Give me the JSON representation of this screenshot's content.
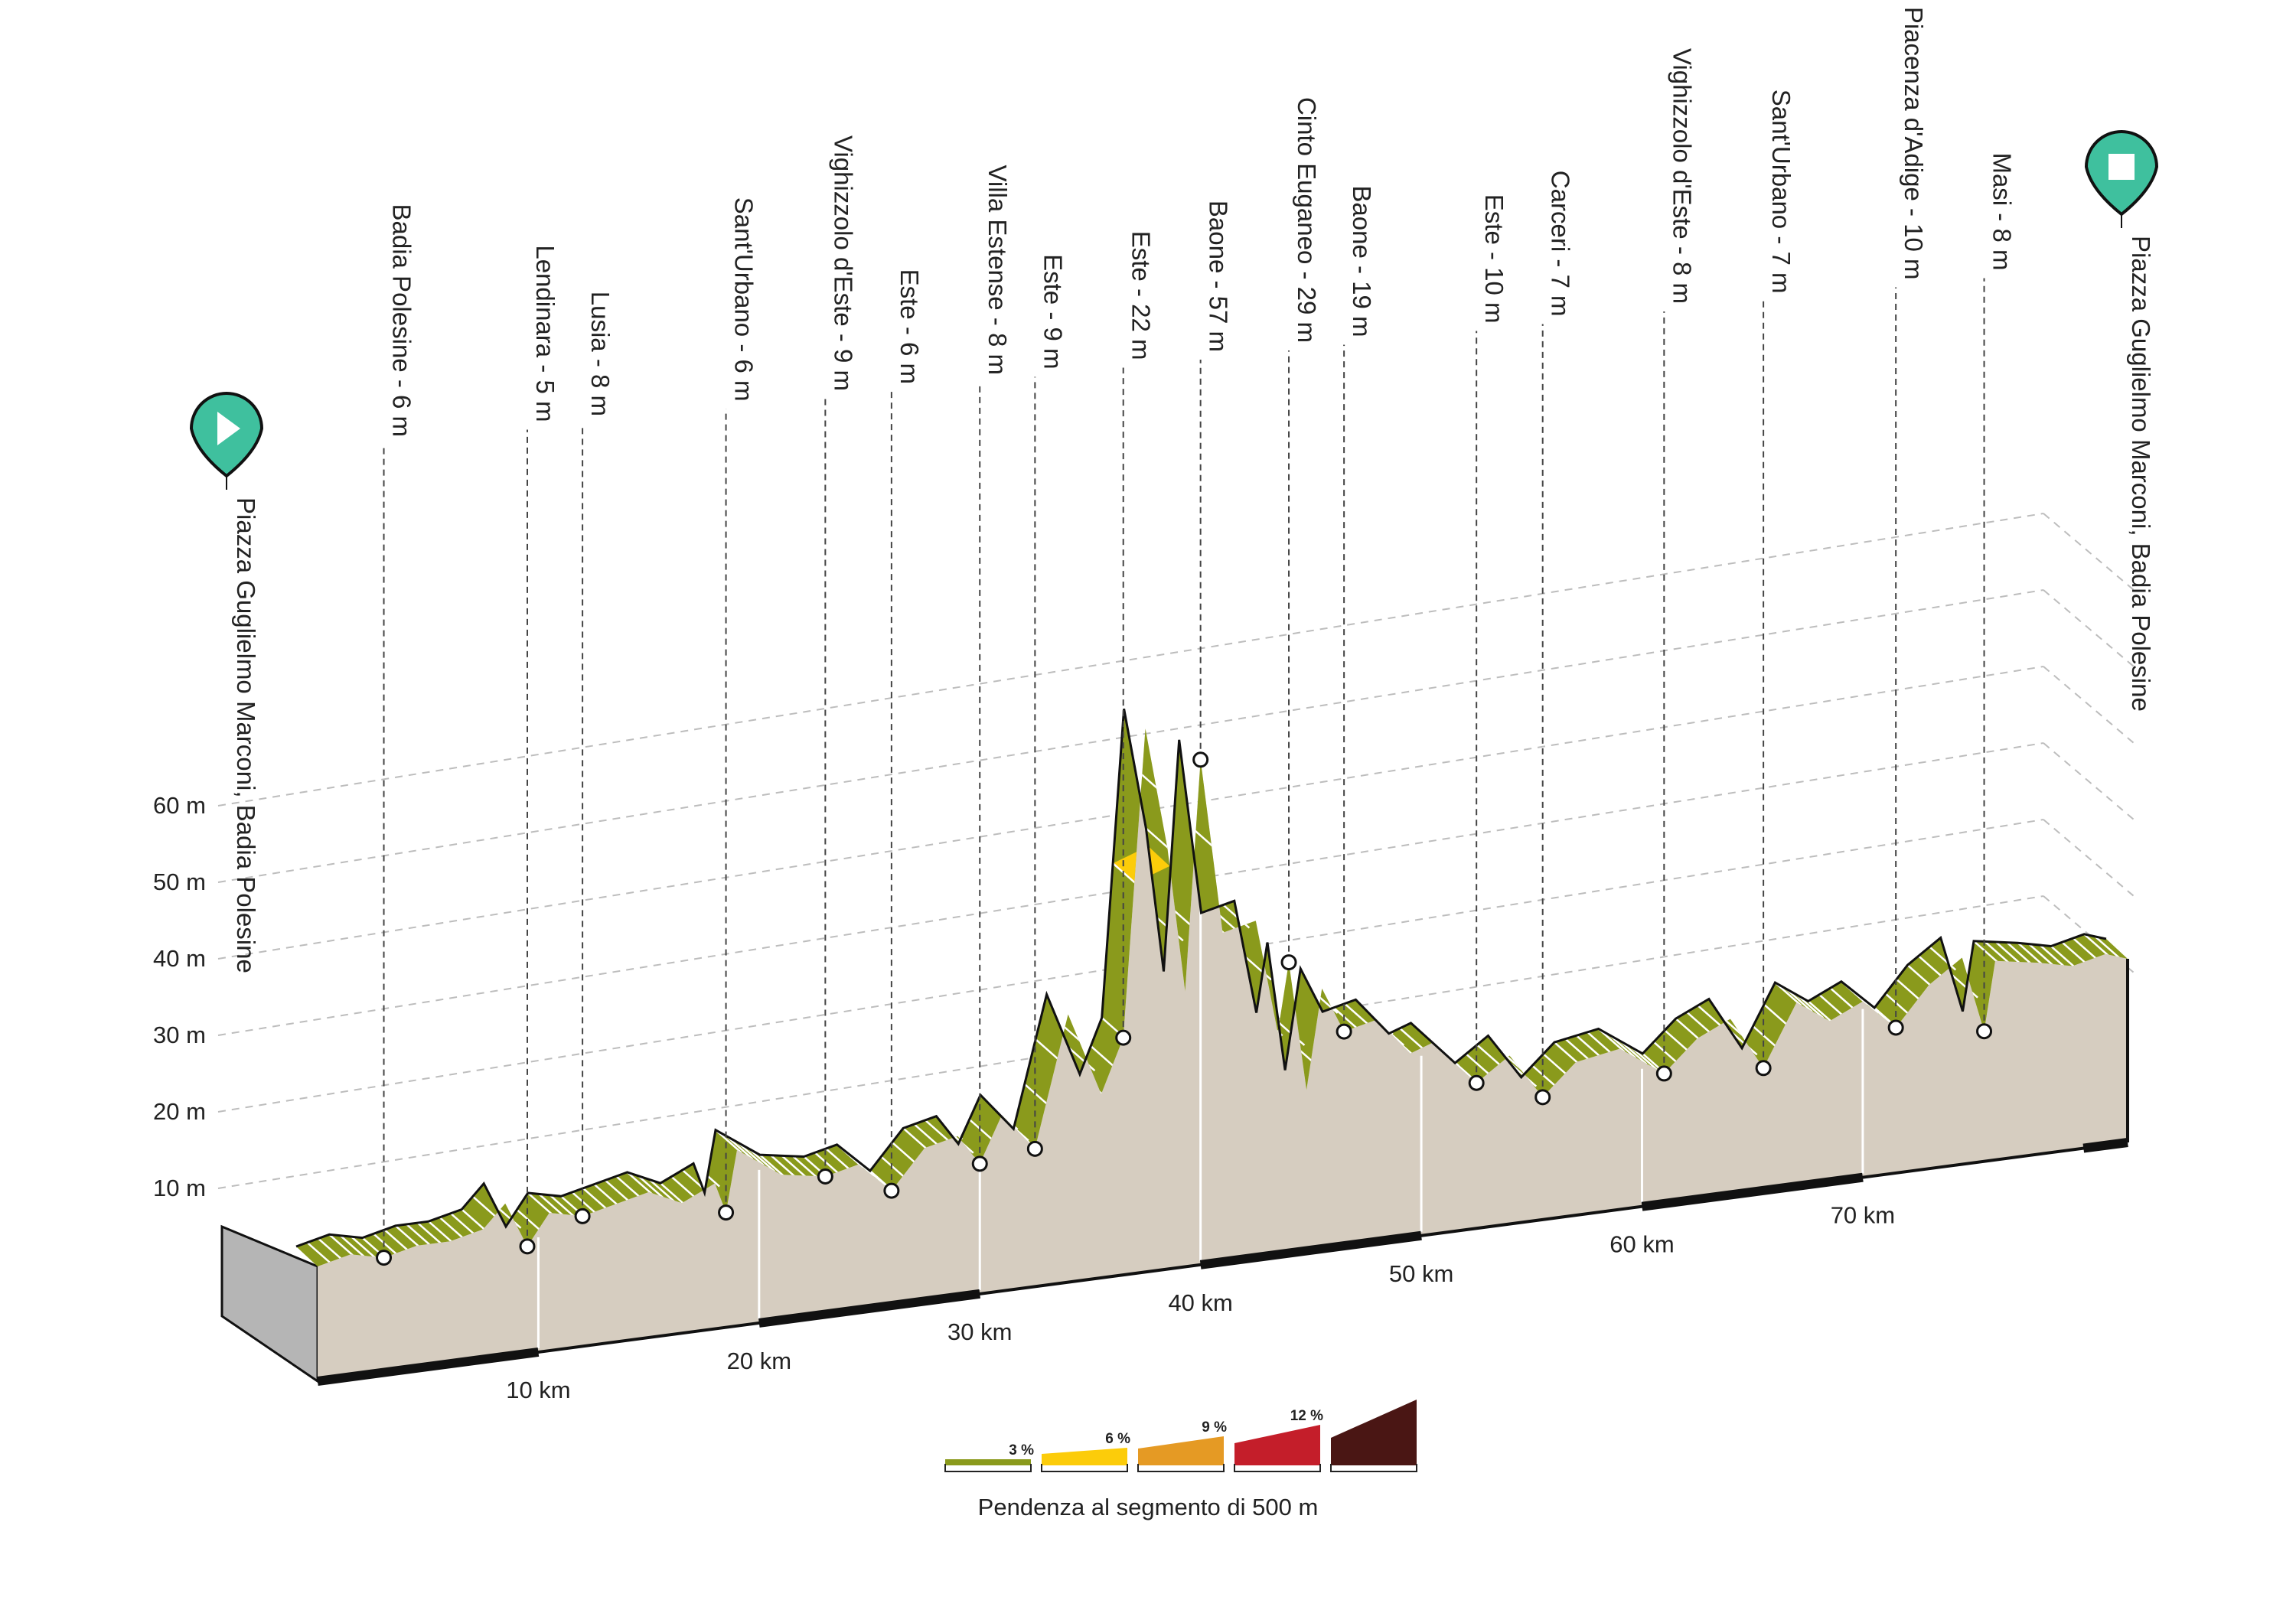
{
  "chart_data": {
    "type": "area",
    "title": "",
    "xlabel": "",
    "ylabel": "",
    "x_unit": "km",
    "y_unit": "m",
    "xlim": [
      0,
      82
    ],
    "ylim": [
      0,
      65
    ],
    "y_ticks": [
      {
        "value": 10,
        "label": "10 m"
      },
      {
        "value": 20,
        "label": "20 m"
      },
      {
        "value": 30,
        "label": "30 m"
      },
      {
        "value": 40,
        "label": "40 m"
      },
      {
        "value": 50,
        "label": "50 m"
      },
      {
        "value": 60,
        "label": "60 m"
      }
    ],
    "x_ticks": [
      {
        "value": 10,
        "label": "10 km"
      },
      {
        "value": 20,
        "label": "20 km"
      },
      {
        "value": 30,
        "label": "30 km"
      },
      {
        "value": 40,
        "label": "40 km"
      },
      {
        "value": 50,
        "label": "50 km"
      },
      {
        "value": 60,
        "label": "60 km"
      },
      {
        "value": 70,
        "label": "70 km"
      }
    ],
    "start_label": "Piazza Guglielmo Marconi, Badia Polesine",
    "finish_label": "Piazza Guglielmo Marconi, Badia Polesine",
    "start_icon": "play-icon",
    "finish_icon": "stop-icon",
    "waypoints": [
      {
        "name": "Badia Polesine - 6 m",
        "km": 3.0,
        "elev": 6
      },
      {
        "name": "Lendinara - 5 m",
        "km": 9.5,
        "elev": 5
      },
      {
        "name": "Lusia - 8 m",
        "km": 12.0,
        "elev": 8
      },
      {
        "name": "Sant'Urbano - 6 m",
        "km": 18.5,
        "elev": 6
      },
      {
        "name": "Vighizzolo d'Este - 9 m",
        "km": 23.0,
        "elev": 9
      },
      {
        "name": "Este - 6 m",
        "km": 26.0,
        "elev": 6
      },
      {
        "name": "Villa Estense - 8 m",
        "km": 30.0,
        "elev": 8
      },
      {
        "name": "Este - 9 m",
        "km": 32.5,
        "elev": 9
      },
      {
        "name": "Este - 22 m",
        "km": 36.5,
        "elev": 22
      },
      {
        "name": "Baone - 57 m",
        "km": 40.0,
        "elev": 57
      },
      {
        "name": "Cinto Euganeo - 29 m",
        "km": 44.0,
        "elev": 29
      },
      {
        "name": "Baone - 19 m",
        "km": 46.5,
        "elev": 19
      },
      {
        "name": "Este - 10 m",
        "km": 52.5,
        "elev": 10
      },
      {
        "name": "Carceri - 7 m",
        "km": 55.5,
        "elev": 7
      },
      {
        "name": "Vighizzolo d'Este - 8 m",
        "km": 61.0,
        "elev": 8
      },
      {
        "name": "Sant'Urbano - 7 m",
        "km": 65.5,
        "elev": 7
      },
      {
        "name": "Piacenza d'Adige - 10 m",
        "km": 71.5,
        "elev": 10
      },
      {
        "name": "Masi - 8 m",
        "km": 75.5,
        "elev": 8
      }
    ],
    "profile": [
      {
        "km": 0,
        "elev": 6
      },
      {
        "km": 1.5,
        "elev": 7
      },
      {
        "km": 3,
        "elev": 6
      },
      {
        "km": 4.5,
        "elev": 7
      },
      {
        "km": 6,
        "elev": 7
      },
      {
        "km": 7.5,
        "elev": 8
      },
      {
        "km": 8.5,
        "elev": 11
      },
      {
        "km": 9.5,
        "elev": 5
      },
      {
        "km": 10.5,
        "elev": 9
      },
      {
        "km": 12,
        "elev": 8
      },
      {
        "km": 13.5,
        "elev": 9
      },
      {
        "km": 15,
        "elev": 10
      },
      {
        "km": 16.5,
        "elev": 8
      },
      {
        "km": 18,
        "elev": 10
      },
      {
        "km": 18.5,
        "elev": 6
      },
      {
        "km": 19,
        "elev": 14
      },
      {
        "km": 21,
        "elev": 10
      },
      {
        "km": 23,
        "elev": 9
      },
      {
        "km": 24.5,
        "elev": 10
      },
      {
        "km": 26,
        "elev": 6
      },
      {
        "km": 27.5,
        "elev": 11
      },
      {
        "km": 29,
        "elev": 12
      },
      {
        "km": 30,
        "elev": 8
      },
      {
        "km": 31,
        "elev": 14
      },
      {
        "km": 32.5,
        "elev": 9
      },
      {
        "km": 34,
        "elev": 26
      },
      {
        "km": 35.5,
        "elev": 15
      },
      {
        "km": 36.5,
        "elev": 22
      },
      {
        "km": 37.5,
        "elev": 62
      },
      {
        "km": 38.5,
        "elev": 46
      },
      {
        "km": 39.3,
        "elev": 27
      },
      {
        "km": 40,
        "elev": 57
      },
      {
        "km": 41,
        "elev": 34
      },
      {
        "km": 42.5,
        "elev": 35
      },
      {
        "km": 43.5,
        "elev": 20
      },
      {
        "km": 44,
        "elev": 29
      },
      {
        "km": 44.8,
        "elev": 12
      },
      {
        "km": 45.5,
        "elev": 25
      },
      {
        "km": 46.5,
        "elev": 19
      },
      {
        "km": 48,
        "elev": 20
      },
      {
        "km": 49.5,
        "elev": 15
      },
      {
        "km": 50.5,
        "elev": 16
      },
      {
        "km": 52.5,
        "elev": 10
      },
      {
        "km": 54,
        "elev": 13
      },
      {
        "km": 55.5,
        "elev": 7
      },
      {
        "km": 57,
        "elev": 11
      },
      {
        "km": 59,
        "elev": 12
      },
      {
        "km": 61,
        "elev": 8
      },
      {
        "km": 62.5,
        "elev": 12
      },
      {
        "km": 64,
        "elev": 14
      },
      {
        "km": 65.5,
        "elev": 7
      },
      {
        "km": 67,
        "elev": 15
      },
      {
        "km": 68.5,
        "elev": 12
      },
      {
        "km": 70,
        "elev": 14
      },
      {
        "km": 71.5,
        "elev": 10
      },
      {
        "km": 73,
        "elev": 15
      },
      {
        "km": 74.5,
        "elev": 18
      },
      {
        "km": 75.5,
        "elev": 8
      },
      {
        "km": 76,
        "elev": 17
      },
      {
        "km": 78,
        "elev": 16
      },
      {
        "km": 79.5,
        "elev": 15
      },
      {
        "km": 81,
        "elev": 16
      },
      {
        "km": 82,
        "elev": 15
      }
    ],
    "steep_segments": [
      {
        "from_km": 37.0,
        "to_km": 38.6,
        "gradient_class": "6 %"
      }
    ],
    "legend": {
      "title": "Pendenza al segmento di 500 m",
      "placement": "bottom-center",
      "items": [
        {
          "label": "3 %",
          "color": "#8a9a1c"
        },
        {
          "label": "6 %",
          "color": "#fccc0a"
        },
        {
          "label": "9 %",
          "color": "#e59a24"
        },
        {
          "label": "12 %",
          "color": "#c41e2a"
        },
        {
          "label": "",
          "color": "#4a1614"
        }
      ]
    },
    "colors": {
      "band": "#8a9a1c",
      "band_steep": "#fccc0a",
      "profile_fill": "#d6cdc0",
      "side_face": "#b5b5b5",
      "marker": "#3fc09e"
    },
    "grid": true
  }
}
